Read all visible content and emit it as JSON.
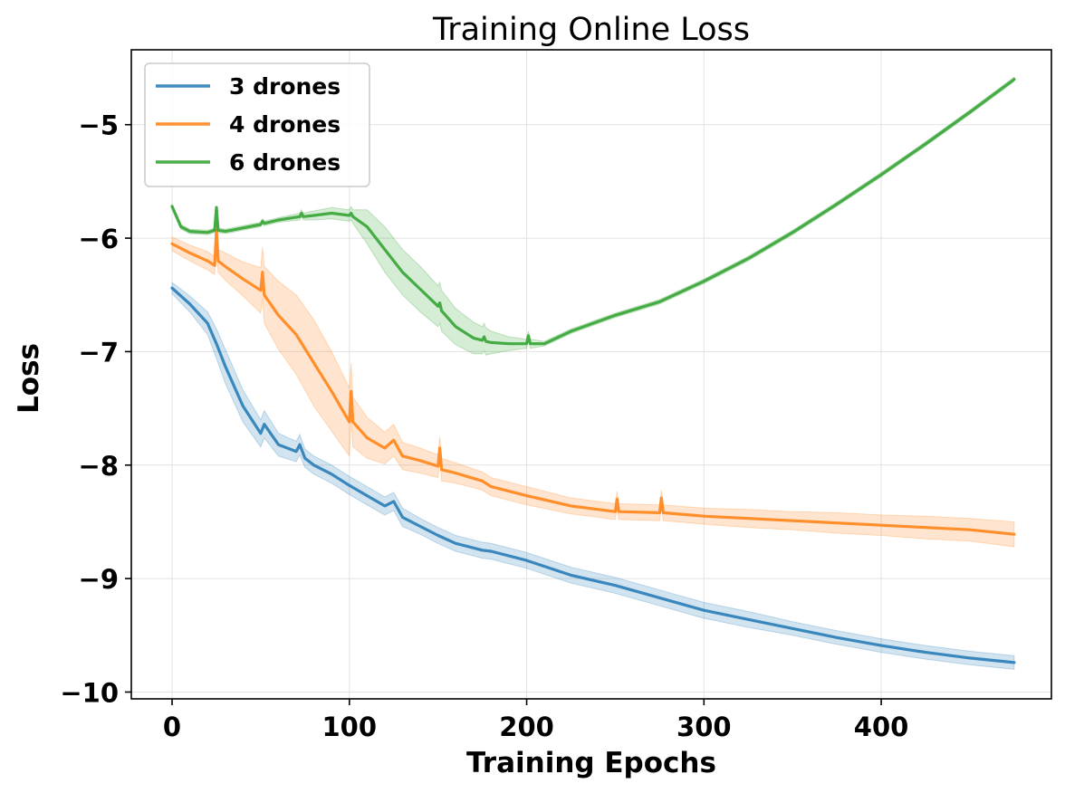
{
  "chart_data": {
    "type": "line",
    "title": "Training Online Loss",
    "xlabel": "Training Epochs",
    "ylabel": "Loss",
    "xlim": [
      -23,
      496
    ],
    "ylim": [
      -10.06,
      -4.34
    ],
    "xticks": [
      0,
      100,
      200,
      300,
      400
    ],
    "xtick_labels": [
      "0",
      "100",
      "200",
      "300",
      "400"
    ],
    "yticks": [
      -10,
      -9,
      -8,
      -7,
      -6,
      -5
    ],
    "ytick_labels": [
      "−10",
      "−9",
      "−8",
      "−7",
      "−6",
      "−5"
    ],
    "grid": true,
    "legend_position": "upper-left",
    "series": [
      {
        "name": "3 drones",
        "color": "#1f77b4",
        "x": [
          0,
          10,
          20,
          25,
          30,
          40,
          50,
          52,
          60,
          70,
          72,
          75,
          80,
          90,
          100,
          110,
          120,
          125,
          130,
          140,
          150,
          160,
          175,
          180,
          200,
          225,
          250,
          275,
          300,
          325,
          350,
          375,
          400,
          425,
          450,
          475
        ],
        "y": [
          -6.44,
          -6.58,
          -6.75,
          -6.93,
          -7.13,
          -7.48,
          -7.72,
          -7.64,
          -7.82,
          -7.88,
          -7.82,
          -7.94,
          -8.0,
          -8.08,
          -8.18,
          -8.27,
          -8.36,
          -8.32,
          -8.46,
          -8.54,
          -8.62,
          -8.69,
          -8.75,
          -8.76,
          -8.84,
          -8.97,
          -9.06,
          -9.17,
          -9.28,
          -9.36,
          -9.44,
          -9.52,
          -9.59,
          -9.65,
          -9.7,
          -9.74
        ],
        "band_width": [
          0.05,
          0.07,
          0.1,
          0.13,
          0.15,
          0.14,
          0.12,
          0.12,
          0.1,
          0.09,
          0.09,
          0.08,
          0.08,
          0.08,
          0.08,
          0.08,
          0.08,
          0.08,
          0.08,
          0.07,
          0.07,
          0.07,
          0.07,
          0.07,
          0.07,
          0.07,
          0.07,
          0.07,
          0.07,
          0.07,
          0.06,
          0.06,
          0.06,
          0.06,
          0.06,
          0.06
        ]
      },
      {
        "name": "4 drones",
        "color": "#ff7f0e",
        "x": [
          0,
          10,
          20,
          24,
          25,
          26,
          30,
          40,
          50,
          51,
          52,
          60,
          70,
          80,
          90,
          100,
          101,
          102,
          110,
          120,
          125,
          130,
          140,
          150,
          151,
          152,
          160,
          175,
          180,
          200,
          225,
          250,
          251,
          252,
          275,
          276,
          277,
          300,
          325,
          350,
          375,
          400,
          425,
          450,
          475
        ],
        "y": [
          -6.05,
          -6.13,
          -6.2,
          -6.24,
          -5.93,
          -6.2,
          -6.25,
          -6.36,
          -6.46,
          -6.3,
          -6.5,
          -6.68,
          -6.85,
          -7.1,
          -7.35,
          -7.62,
          -7.35,
          -7.62,
          -7.76,
          -7.85,
          -7.78,
          -7.92,
          -7.96,
          -8.01,
          -7.85,
          -8.04,
          -8.07,
          -8.14,
          -8.19,
          -8.27,
          -8.36,
          -8.41,
          -8.3,
          -8.41,
          -8.42,
          -8.29,
          -8.42,
          -8.45,
          -8.47,
          -8.49,
          -8.51,
          -8.53,
          -8.55,
          -8.57,
          -8.61
        ],
        "band_width": [
          0.06,
          0.07,
          0.08,
          0.08,
          0.12,
          0.1,
          0.12,
          0.15,
          0.2,
          0.22,
          0.25,
          0.3,
          0.35,
          0.38,
          0.35,
          0.3,
          0.25,
          0.22,
          0.18,
          0.14,
          0.14,
          0.12,
          0.11,
          0.1,
          0.1,
          0.1,
          0.09,
          0.08,
          0.08,
          0.08,
          0.07,
          0.07,
          0.07,
          0.07,
          0.07,
          0.07,
          0.07,
          0.07,
          0.08,
          0.08,
          0.09,
          0.09,
          0.1,
          0.1,
          0.11
        ]
      },
      {
        "name": "6 drones",
        "color": "#2ca02c",
        "x": [
          0,
          5,
          10,
          20,
          24,
          25,
          26,
          30,
          40,
          50,
          51,
          52,
          60,
          72,
          73,
          74,
          80,
          90,
          100,
          101,
          102,
          110,
          120,
          130,
          140,
          150,
          151,
          152,
          160,
          170,
          175,
          176,
          177,
          180,
          190,
          200,
          201,
          202,
          210,
          225,
          250,
          275,
          300,
          325,
          350,
          375,
          400,
          425,
          450,
          475
        ],
        "y": [
          -5.72,
          -5.9,
          -5.94,
          -5.95,
          -5.93,
          -5.73,
          -5.93,
          -5.94,
          -5.91,
          -5.88,
          -5.85,
          -5.87,
          -5.84,
          -5.81,
          -5.78,
          -5.81,
          -5.8,
          -5.78,
          -5.8,
          -5.78,
          -5.81,
          -5.9,
          -6.1,
          -6.3,
          -6.45,
          -6.6,
          -6.57,
          -6.64,
          -6.78,
          -6.88,
          -6.9,
          -6.87,
          -6.91,
          -6.92,
          -6.93,
          -6.93,
          -6.86,
          -6.93,
          -6.93,
          -6.82,
          -6.68,
          -6.56,
          -6.38,
          -6.18,
          -5.95,
          -5.7,
          -5.44,
          -5.17,
          -4.89,
          -4.6
        ],
        "band_width": [
          0.02,
          0.02,
          0.02,
          0.02,
          0.02,
          0.02,
          0.02,
          0.02,
          0.02,
          0.02,
          0.02,
          0.02,
          0.02,
          0.03,
          0.03,
          0.03,
          0.04,
          0.05,
          0.05,
          0.06,
          0.06,
          0.15,
          0.2,
          0.2,
          0.2,
          0.18,
          0.18,
          0.18,
          0.16,
          0.14,
          0.12,
          0.12,
          0.12,
          0.1,
          0.06,
          0.04,
          0.04,
          0.04,
          0.02,
          0.02,
          0.02,
          0.02,
          0.02,
          0.02,
          0.02,
          0.02,
          0.02,
          0.02,
          0.02,
          0.02
        ]
      }
    ]
  }
}
